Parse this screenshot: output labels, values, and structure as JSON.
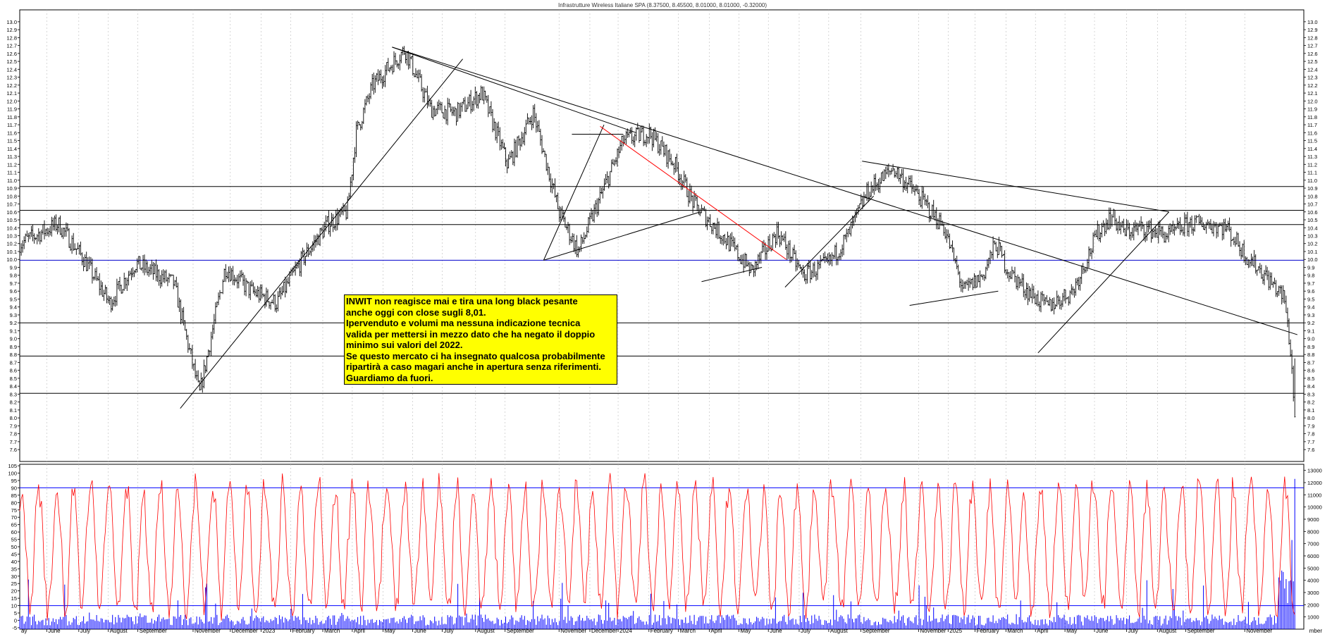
{
  "chart_data": [
    {
      "type": "ohlc",
      "title": "Infrastrutture Wireless Italiane SPA (8.37500, 8.45500, 8.01000, 8.01000, -0.32000)",
      "ylim": [
        7.45,
        13.15
      ],
      "grid": true,
      "y_ticks": [
        7.6,
        7.7,
        7.8,
        7.9,
        8.0,
        8.1,
        8.2,
        8.3,
        8.4,
        8.5,
        8.6,
        8.7,
        8.8,
        8.9,
        9.0,
        9.1,
        9.2,
        9.3,
        9.4,
        9.5,
        9.6,
        9.7,
        9.8,
        9.9,
        10.0,
        10.1,
        10.2,
        10.3,
        10.4,
        10.5,
        10.6,
        10.7,
        10.8,
        10.9,
        11.0,
        11.1,
        11.2,
        11.3,
        11.4,
        11.5,
        11.6,
        11.7,
        11.8,
        11.9,
        12.0,
        12.1,
        12.2,
        12.3,
        12.4,
        12.5,
        12.6,
        12.7,
        12.8,
        12.9,
        13.0
      ],
      "horizontal_levels": [
        {
          "value": 8.31,
          "color": "#000000"
        },
        {
          "value": 8.78,
          "color": "#000000"
        },
        {
          "value": 9.2,
          "color": "#000000"
        },
        {
          "value": 9.99,
          "color": "#0000cc"
        },
        {
          "value": 10.44,
          "color": "#000000"
        },
        {
          "value": 10.62,
          "color": "#000000"
        },
        {
          "value": 10.92,
          "color": "#000000"
        }
      ],
      "close_path": [
        [
          0,
          10.2
        ],
        [
          0.03,
          10.45
        ],
        [
          0.05,
          10.0
        ],
        [
          0.07,
          9.45
        ],
        [
          0.09,
          9.95
        ],
        [
          0.12,
          9.7
        ],
        [
          0.14,
          8.3
        ],
        [
          0.16,
          9.9
        ],
        [
          0.18,
          9.6
        ],
        [
          0.2,
          9.45
        ],
        [
          0.22,
          10.0
        ],
        [
          0.24,
          10.45
        ],
        [
          0.255,
          10.6
        ],
        [
          0.262,
          11.6
        ],
        [
          0.275,
          12.2
        ],
        [
          0.3,
          12.65
        ],
        [
          0.32,
          11.9
        ],
        [
          0.34,
          11.85
        ],
        [
          0.36,
          12.1
        ],
        [
          0.38,
          11.2
        ],
        [
          0.4,
          11.85
        ],
        [
          0.42,
          10.6
        ],
        [
          0.435,
          10.1
        ],
        [
          0.45,
          10.7
        ],
        [
          0.47,
          11.5
        ],
        [
          0.49,
          11.6
        ],
        [
          0.51,
          11.2
        ],
        [
          0.525,
          10.7
        ],
        [
          0.55,
          10.25
        ],
        [
          0.57,
          9.85
        ],
        [
          0.59,
          10.35
        ],
        [
          0.61,
          9.8
        ],
        [
          0.63,
          9.95
        ],
        [
          0.645,
          10.3
        ],
        [
          0.66,
          10.85
        ],
        [
          0.68,
          11.15
        ],
        [
          0.7,
          10.8
        ],
        [
          0.72,
          10.4
        ],
        [
          0.735,
          9.6
        ],
        [
          0.75,
          9.8
        ],
        [
          0.76,
          10.2
        ],
        [
          0.77,
          9.85
        ],
        [
          0.785,
          9.6
        ],
        [
          0.8,
          9.4
        ],
        [
          0.82,
          9.6
        ],
        [
          0.84,
          10.35
        ],
        [
          0.85,
          10.55
        ],
        [
          0.86,
          10.35
        ],
        [
          0.875,
          10.4
        ],
        [
          0.895,
          10.3
        ],
        [
          0.91,
          10.45
        ],
        [
          0.925,
          10.45
        ],
        [
          0.94,
          10.4
        ],
        [
          0.955,
          10.05
        ],
        [
          0.97,
          9.8
        ],
        [
          0.985,
          9.5
        ],
        [
          0.99,
          8.8
        ],
        [
          0.993,
          8.01
        ]
      ],
      "trendlines": [
        {
          "from": [
            0.125,
            8.12
          ],
          "to": [
            0.345,
            12.53
          ],
          "color": "#000000"
        },
        {
          "from": [
            0.29,
            12.68
          ],
          "to": [
            0.995,
            9.05
          ],
          "color": "#000000"
        },
        {
          "from": [
            0.29,
            12.68
          ],
          "to": [
            0.48,
            11.6
          ],
          "color": "#000000"
        },
        {
          "from": [
            0.408,
            9.99
          ],
          "to": [
            0.455,
            11.7
          ],
          "color": "#000000"
        },
        {
          "from": [
            0.408,
            9.99
          ],
          "to": [
            0.53,
            10.6
          ],
          "color": "#000000"
        },
        {
          "from": [
            0.452,
            11.68
          ],
          "to": [
            0.597,
            10.0
          ],
          "color": "#ff0000"
        },
        {
          "from": [
            0.43,
            11.58
          ],
          "to": [
            0.47,
            11.58
          ],
          "color": "#000000"
        },
        {
          "from": [
            0.531,
            9.72
          ],
          "to": [
            0.578,
            9.9
          ],
          "color": "#000000"
        },
        {
          "from": [
            0.596,
            9.65
          ],
          "to": [
            0.665,
            10.8
          ],
          "color": "#000000"
        },
        {
          "from": [
            0.656,
            11.24
          ],
          "to": [
            0.895,
            10.6
          ],
          "color": "#000000"
        },
        {
          "from": [
            0.693,
            9.42
          ],
          "to": [
            0.762,
            9.6
          ],
          "color": "#000000"
        },
        {
          "from": [
            0.793,
            8.82
          ],
          "to": [
            0.895,
            10.6
          ],
          "color": "#000000"
        }
      ]
    },
    {
      "type": "line+bar",
      "ylim": [
        -6,
        106
      ],
      "y_ticks": [
        -5,
        0,
        5,
        10,
        15,
        20,
        25,
        30,
        35,
        40,
        45,
        50,
        55,
        60,
        65,
        70,
        75,
        80,
        85,
        90,
        95,
        100,
        105
      ],
      "right_ticks": [
        1000,
        2000,
        3000,
        4000,
        5000,
        6000,
        7000,
        8000,
        9000,
        10000,
        11000,
        12000,
        13000
      ],
      "right_range": [
        0,
        13500
      ],
      "bands": [
        {
          "value": 10,
          "color": "#0000ff"
        },
        {
          "value": 90,
          "color": "#0000ff"
        }
      ],
      "series": [
        {
          "color": "#ff0000",
          "style": "line"
        },
        {
          "color": "#0000ff",
          "style": "bar"
        }
      ]
    }
  ],
  "x_axis": {
    "months": [
      "ay",
      "June",
      "July",
      "August",
      "September",
      "November",
      "December",
      "2023",
      "February",
      "March",
      "April",
      "May",
      "June",
      "July",
      "August",
      "September",
      "November",
      "December",
      "2024",
      "February",
      "March",
      "April",
      "May",
      "June",
      "July",
      "August",
      "September",
      "November",
      "2025",
      "February",
      "March",
      "April",
      "May",
      "June",
      "July",
      "August",
      "September",
      "November"
    ],
    "month_positions": [
      0.0,
      0.021,
      0.046,
      0.069,
      0.092,
      0.135,
      0.164,
      0.188,
      0.211,
      0.236,
      0.259,
      0.283,
      0.306,
      0.329,
      0.355,
      0.378,
      0.42,
      0.444,
      0.466,
      0.49,
      0.513,
      0.537,
      0.56,
      0.583,
      0.607,
      0.63,
      0.655,
      0.7,
      0.723,
      0.744,
      0.768,
      0.791,
      0.814,
      0.837,
      0.862,
      0.886,
      0.908,
      0.954
    ],
    "tail_label": "mber"
  },
  "annotation": {
    "lines": [
      "INWIT non reagisce mai e tira una long black pesante",
      "anche oggi con close sugli 8,01.",
      "Ipervenduto e volumi ma nessuna indicazione tecnica",
      "valida per mettersi in mezzo dato che ha negato il doppio",
      "minimo sui valori del 2022.",
      "Se questo mercato ci ha insegnato qualcosa probabilmente",
      "ripartirà a caso magari anche in apertura senza riferimenti.",
      "Guardiamo da fuori."
    ],
    "background": "#ffff00"
  },
  "colors": {
    "price": "#000000",
    "oscillator": "#ff0000",
    "volume": "#0000ff",
    "grid": "#bbbbbb"
  }
}
